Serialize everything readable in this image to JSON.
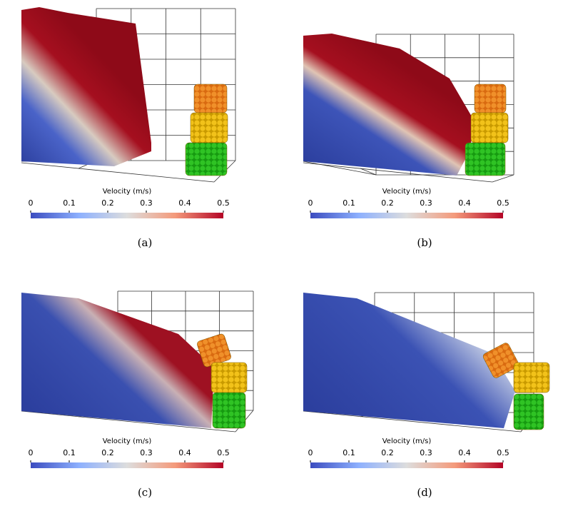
{
  "panels": [
    {
      "caption": "(a)",
      "colorbar": {
        "title": "Velocity (m/s)",
        "range": [
          0,
          0.5
        ],
        "ticks": [
          0,
          0.1,
          0.2,
          0.3,
          0.4,
          0.5
        ]
      }
    },
    {
      "caption": "(b)",
      "colorbar": {
        "title": "Velocity (m/s)",
        "range": [
          0,
          0.5
        ],
        "ticks": [
          0,
          0.1,
          0.2,
          0.3,
          0.4,
          0.5
        ]
      }
    },
    {
      "caption": "(c)",
      "colorbar": {
        "title": "Velocity (m/s)",
        "range": [
          0,
          0.5
        ],
        "ticks": [
          0,
          0.1,
          0.2,
          0.3,
          0.4,
          0.5
        ]
      }
    },
    {
      "caption": "(d)",
      "colorbar": {
        "title": "Velocity (m/s)",
        "range": [
          0,
          0.5
        ],
        "ticks": [
          0,
          0.1,
          0.2,
          0.3,
          0.4,
          0.5
        ]
      }
    }
  ]
}
